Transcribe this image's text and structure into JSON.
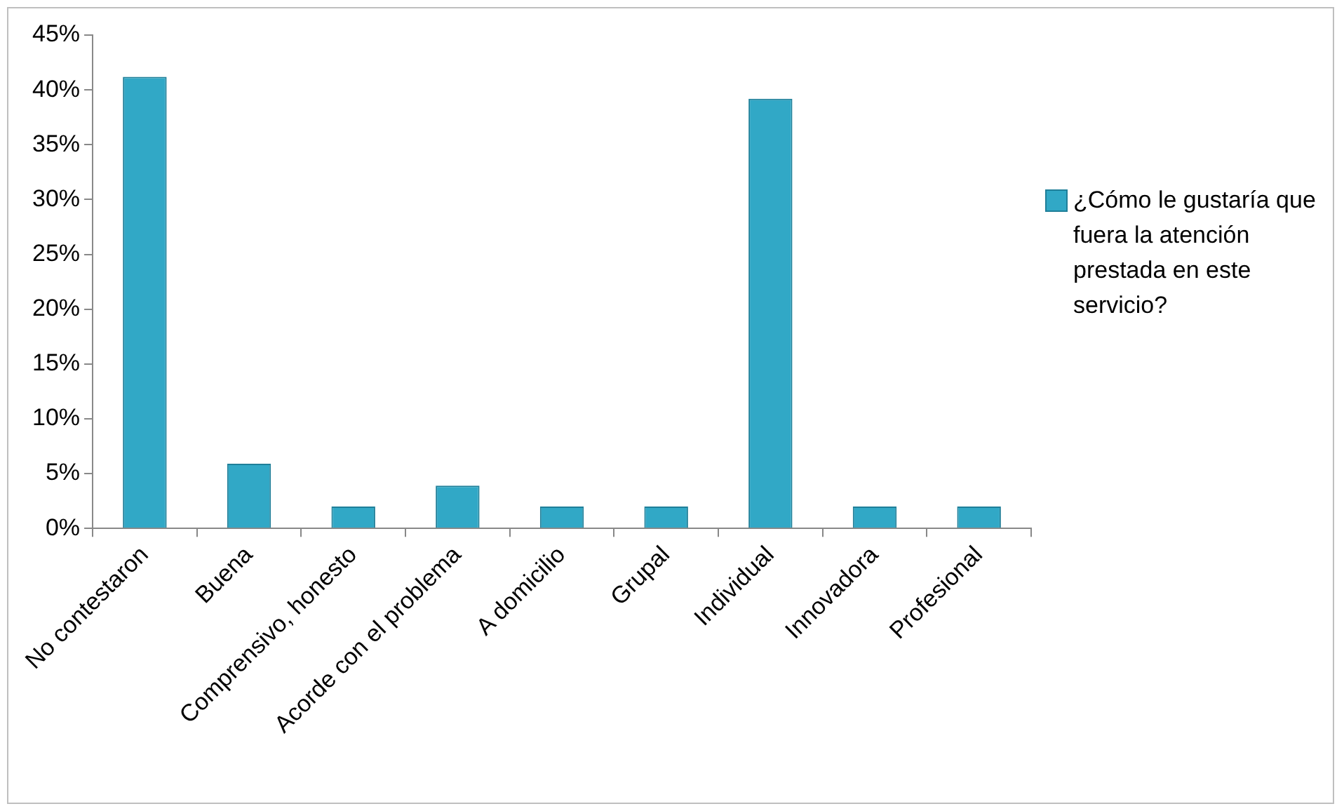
{
  "chart_data": {
    "type": "bar",
    "categories": [
      "No contestaron",
      "Buena",
      "Comprensivo, honesto",
      "Acorde con el problema",
      "A domicilio",
      "Grupal",
      "Individual",
      "Innovadora",
      "Profesional"
    ],
    "series": [
      {
        "name": "¿Cómo le gustaría que fuera la atención prestada en este servicio?",
        "color": "#31a8c6",
        "values": [
          41.2,
          5.9,
          2,
          3.9,
          2,
          2,
          39.2,
          2,
          2
        ]
      }
    ],
    "ylim": [
      0,
      45
    ],
    "yticks": [
      {
        "value": 0,
        "label": "0%"
      },
      {
        "value": 5,
        "label": "5%"
      },
      {
        "value": 10,
        "label": "10%"
      },
      {
        "value": 15,
        "label": "15%"
      },
      {
        "value": 20,
        "label": "20%"
      },
      {
        "value": 25,
        "label": "25%"
      },
      {
        "value": 30,
        "label": "30%"
      },
      {
        "value": 35,
        "label": "35%"
      },
      {
        "value": 40,
        "label": "40%"
      },
      {
        "value": 45,
        "label": "45%"
      }
    ],
    "grid": false,
    "legend": "right"
  }
}
